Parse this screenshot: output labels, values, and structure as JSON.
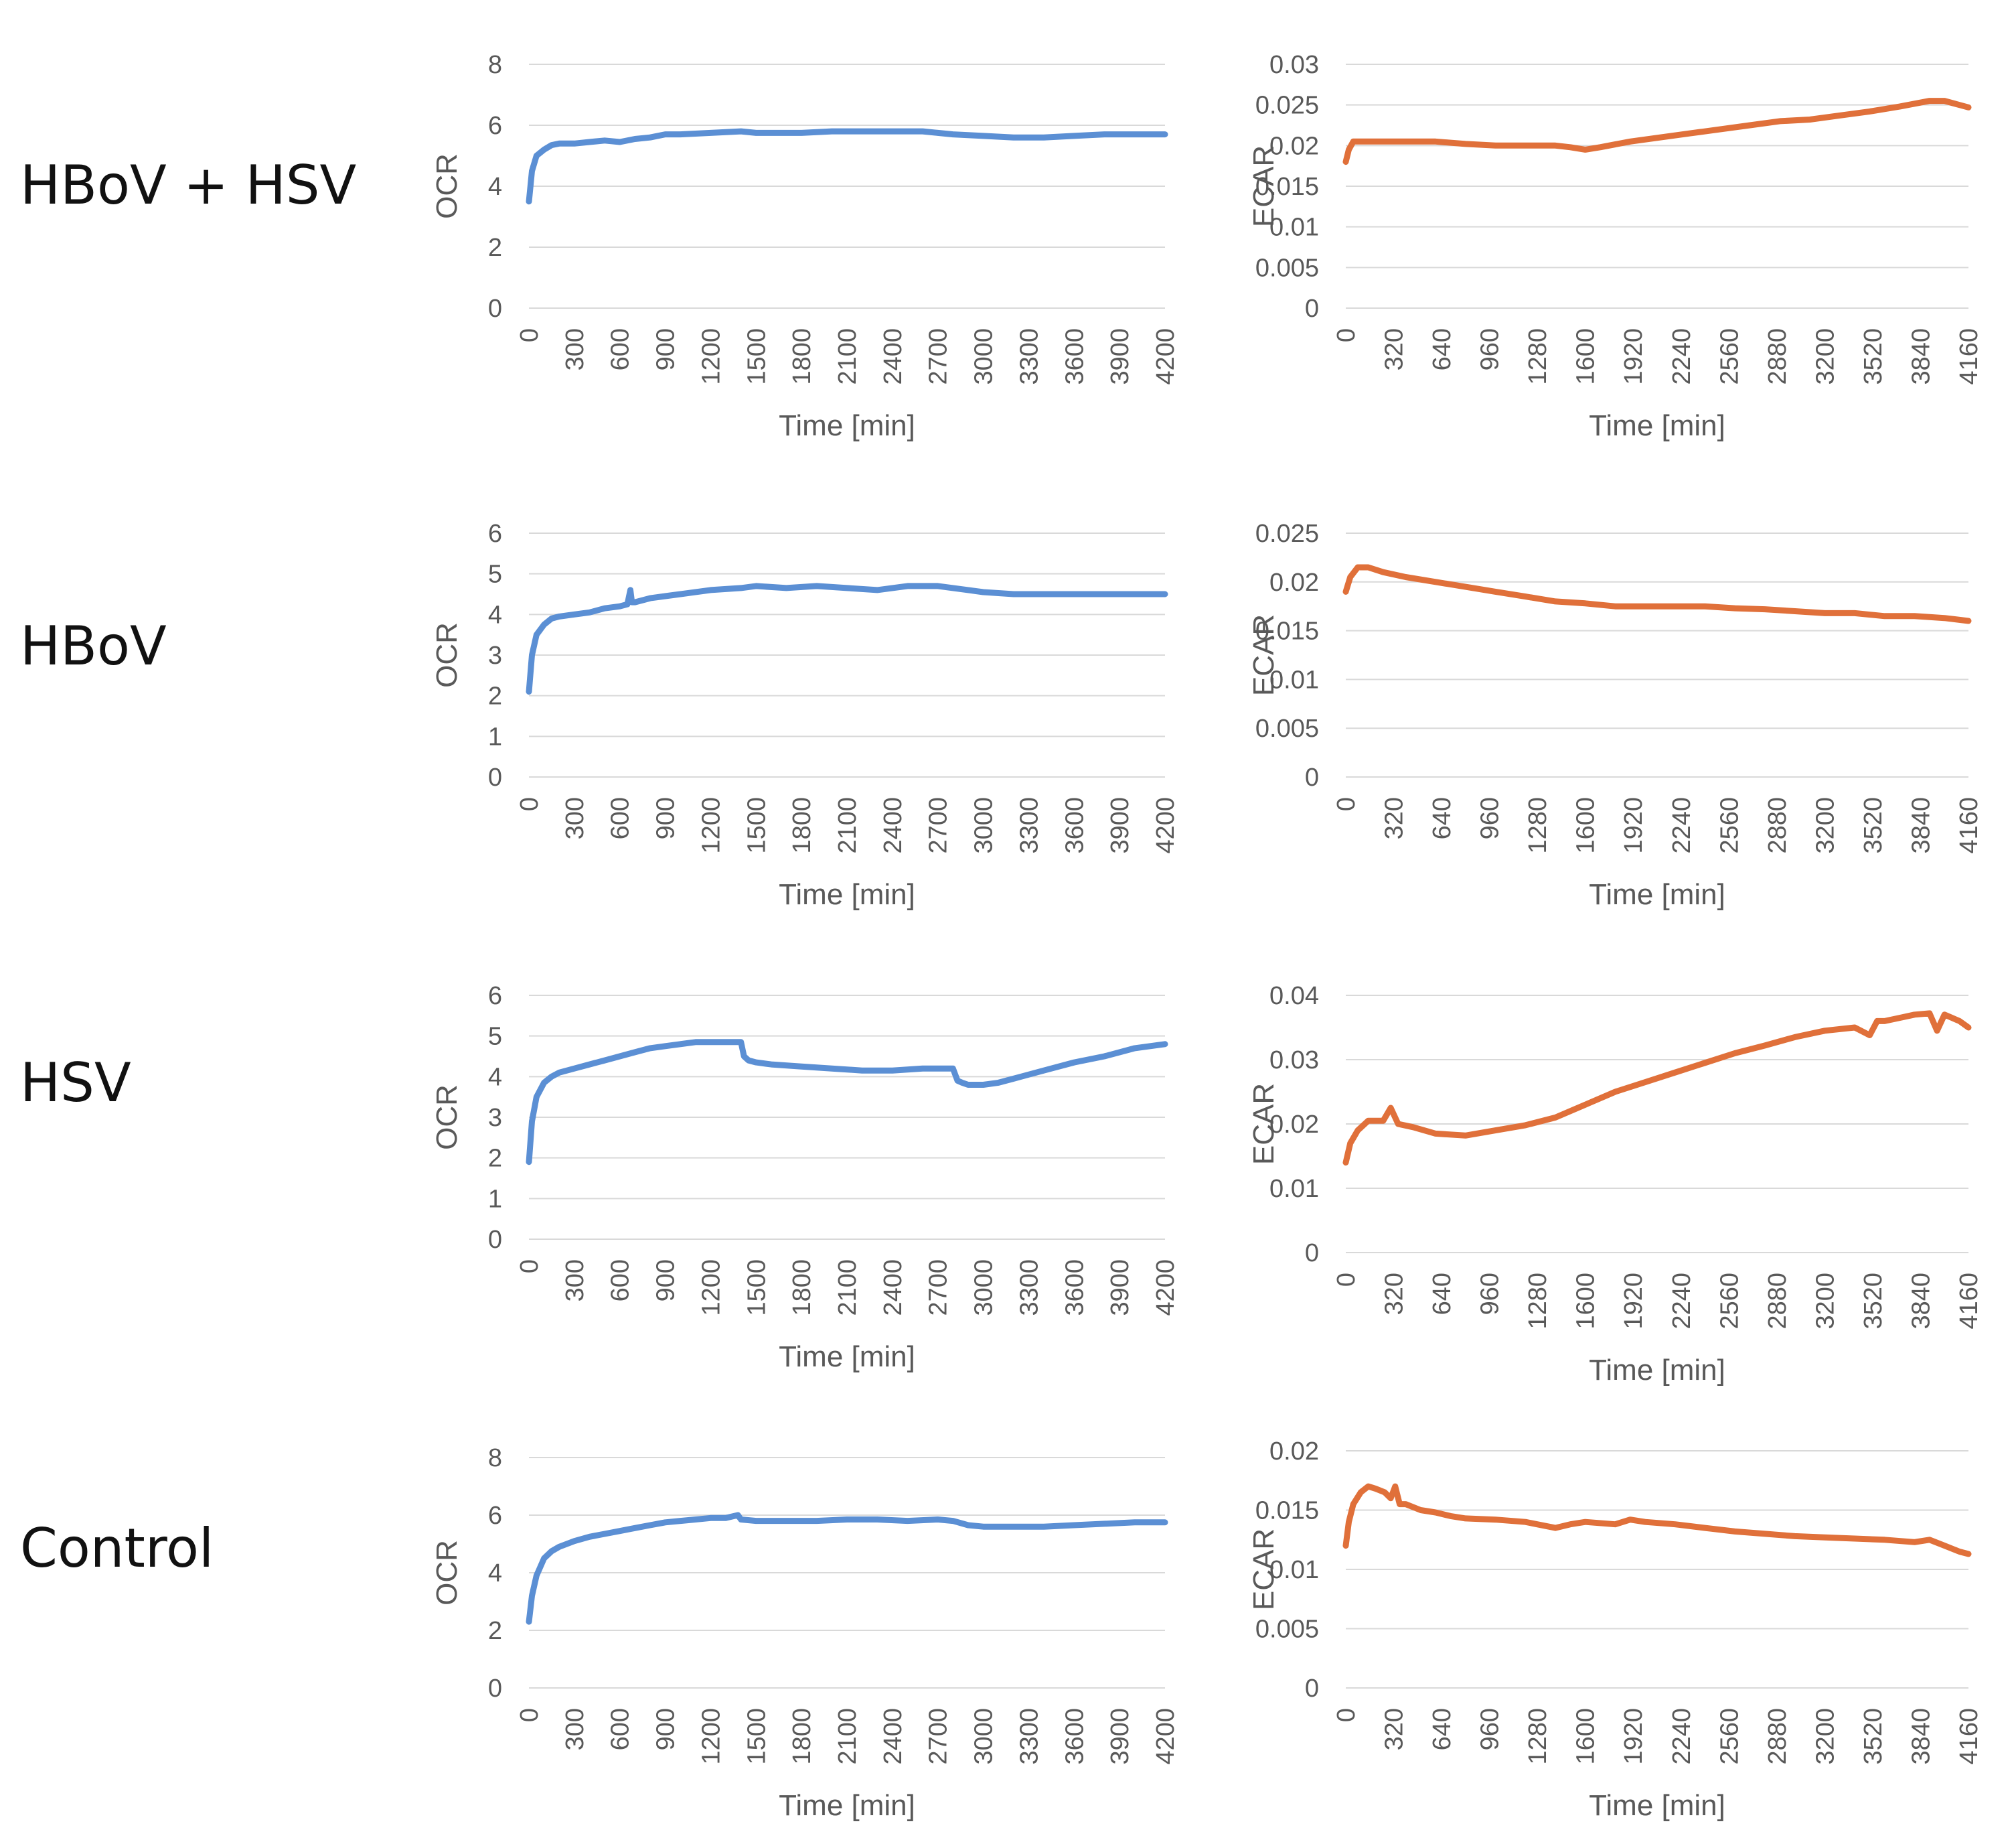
{
  "rows": [
    {
      "label": "HBoV + HSV"
    },
    {
      "label": "HBoV"
    },
    {
      "label": "HSV"
    },
    {
      "label": "Control"
    }
  ],
  "colors": {
    "ocr": "#5B8FD4",
    "ecar": "#E0703A",
    "grid": "#d9d9d9",
    "axis_text": "#595959"
  },
  "chart_data": [
    {
      "id": "ocr-hbov-hsv",
      "type": "line",
      "row_label": "HBoV + HSV",
      "ylabel": "OCR",
      "xlabel": "Time [min]",
      "ylim": [
        0,
        8
      ],
      "yticks": [
        0,
        2,
        4,
        6,
        8
      ],
      "xlim": [
        0,
        4200
      ],
      "xticks": [
        0,
        300,
        600,
        900,
        1200,
        1500,
        1800,
        2100,
        2400,
        2700,
        3000,
        3300,
        3600,
        3900,
        4200
      ],
      "series": [
        {
          "name": "OCR",
          "color": "#5B8FD4",
          "x": [
            0,
            20,
            50,
            100,
            150,
            200,
            300,
            400,
            500,
            600,
            700,
            800,
            900,
            1000,
            1200,
            1400,
            1500,
            1600,
            1800,
            2000,
            2100,
            2200,
            2400,
            2600,
            2700,
            2800,
            3000,
            3200,
            3400,
            3600,
            3800,
            4000,
            4200
          ],
          "y": [
            3.5,
            4.5,
            5.0,
            5.2,
            5.35,
            5.4,
            5.4,
            5.45,
            5.5,
            5.45,
            5.55,
            5.6,
            5.7,
            5.7,
            5.75,
            5.8,
            5.75,
            5.75,
            5.75,
            5.8,
            5.8,
            5.8,
            5.8,
            5.8,
            5.75,
            5.7,
            5.65,
            5.6,
            5.6,
            5.65,
            5.7,
            5.7,
            5.7
          ]
        }
      ]
    },
    {
      "id": "ecar-hbov-hsv",
      "type": "line",
      "row_label": "HBoV + HSV",
      "ylabel": "ECAR",
      "xlabel": "Time [min]",
      "ylim": [
        0,
        0.03
      ],
      "yticks": [
        0,
        0.005,
        0.01,
        0.015,
        0.02,
        0.025,
        0.03
      ],
      "xlim": [
        0,
        4160
      ],
      "xticks": [
        0,
        320,
        640,
        960,
        1280,
        1600,
        1920,
        2240,
        2560,
        2880,
        3200,
        3520,
        3840,
        4160
      ],
      "series": [
        {
          "name": "ECAR",
          "color": "#E0703A",
          "x": [
            0,
            20,
            50,
            100,
            200,
            400,
            600,
            800,
            1000,
            1200,
            1400,
            1500,
            1600,
            1700,
            1900,
            2100,
            2300,
            2500,
            2700,
            2900,
            3100,
            3300,
            3500,
            3700,
            3900,
            4000,
            4100,
            4160
          ],
          "y": [
            0.018,
            0.0195,
            0.0205,
            0.0205,
            0.0205,
            0.0205,
            0.0205,
            0.0202,
            0.02,
            0.02,
            0.02,
            0.0198,
            0.0195,
            0.0198,
            0.0205,
            0.021,
            0.0215,
            0.022,
            0.0225,
            0.023,
            0.0232,
            0.0237,
            0.0242,
            0.0248,
            0.0255,
            0.0255,
            0.025,
            0.0247
          ]
        }
      ]
    },
    {
      "id": "ocr-hbov",
      "type": "line",
      "row_label": "HBoV",
      "ylabel": "OCR",
      "xlabel": "Time [min]",
      "ylim": [
        0,
        6
      ],
      "yticks": [
        0,
        1,
        2,
        3,
        4,
        5,
        6
      ],
      "xlim": [
        0,
        4200
      ],
      "xticks": [
        0,
        300,
        600,
        900,
        1200,
        1500,
        1800,
        2100,
        2400,
        2700,
        3000,
        3300,
        3600,
        3900,
        4200
      ],
      "series": [
        {
          "name": "OCR",
          "color": "#5B8FD4",
          "x": [
            0,
            20,
            50,
            100,
            150,
            200,
            300,
            400,
            500,
            600,
            650,
            670,
            680,
            700,
            800,
            900,
            1000,
            1200,
            1400,
            1500,
            1700,
            1900,
            2100,
            2300,
            2400,
            2500,
            2700,
            2900,
            3000,
            3200,
            3400,
            3600,
            3800,
            4000,
            4200
          ],
          "y": [
            2.1,
            3.0,
            3.5,
            3.75,
            3.9,
            3.95,
            4.0,
            4.05,
            4.15,
            4.2,
            4.25,
            4.6,
            4.3,
            4.3,
            4.4,
            4.45,
            4.5,
            4.6,
            4.65,
            4.7,
            4.65,
            4.7,
            4.65,
            4.6,
            4.65,
            4.7,
            4.7,
            4.6,
            4.55,
            4.5,
            4.5,
            4.5,
            4.5,
            4.5,
            4.5
          ]
        }
      ]
    },
    {
      "id": "ecar-hbov",
      "type": "line",
      "row_label": "HBoV",
      "ylabel": "ECAR",
      "xlabel": "Time [min]",
      "ylim": [
        0,
        0.025
      ],
      "yticks": [
        0,
        0.005,
        0.01,
        0.015,
        0.02,
        0.025
      ],
      "xlim": [
        0,
        4160
      ],
      "xticks": [
        0,
        320,
        640,
        960,
        1280,
        1600,
        1920,
        2240,
        2560,
        2880,
        3200,
        3520,
        3840,
        4160
      ],
      "series": [
        {
          "name": "ECAR",
          "color": "#E0703A",
          "x": [
            0,
            30,
            80,
            150,
            250,
            400,
            600,
            800,
            1000,
            1200,
            1400,
            1600,
            1800,
            2000,
            2200,
            2400,
            2600,
            2800,
            3000,
            3200,
            3400,
            3600,
            3800,
            4000,
            4160
          ],
          "y": [
            0.019,
            0.0205,
            0.0215,
            0.0215,
            0.021,
            0.0205,
            0.02,
            0.0195,
            0.019,
            0.0185,
            0.018,
            0.0178,
            0.0175,
            0.0175,
            0.0175,
            0.0175,
            0.0173,
            0.0172,
            0.017,
            0.0168,
            0.0168,
            0.0165,
            0.0165,
            0.0163,
            0.016
          ]
        }
      ]
    },
    {
      "id": "ocr-hsv",
      "type": "line",
      "row_label": "HSV",
      "ylabel": "OCR",
      "xlabel": "Time [min]",
      "ylim": [
        0,
        6
      ],
      "yticks": [
        0,
        1,
        2,
        3,
        4,
        5,
        6
      ],
      "xlim": [
        0,
        4200
      ],
      "xticks": [
        0,
        300,
        600,
        900,
        1200,
        1500,
        1800,
        2100,
        2400,
        2700,
        3000,
        3300,
        3600,
        3900,
        4200
      ],
      "series": [
        {
          "name": "OCR",
          "color": "#5B8FD4",
          "x": [
            0,
            20,
            50,
            100,
            150,
            200,
            300,
            400,
            500,
            600,
            700,
            800,
            900,
            1000,
            1100,
            1200,
            1300,
            1400,
            1420,
            1450,
            1500,
            1600,
            1800,
            2000,
            2200,
            2400,
            2600,
            2800,
            2830,
            2860,
            2900,
            3000,
            3100,
            3200,
            3400,
            3600,
            3800,
            4000,
            4200
          ],
          "y": [
            1.9,
            2.9,
            3.5,
            3.85,
            4.0,
            4.1,
            4.2,
            4.3,
            4.4,
            4.5,
            4.6,
            4.7,
            4.75,
            4.8,
            4.85,
            4.85,
            4.85,
            4.85,
            4.5,
            4.4,
            4.35,
            4.3,
            4.25,
            4.2,
            4.15,
            4.15,
            4.2,
            4.2,
            3.9,
            3.85,
            3.8,
            3.8,
            3.85,
            3.95,
            4.15,
            4.35,
            4.5,
            4.7,
            4.8
          ]
        }
      ]
    },
    {
      "id": "ecar-hsv",
      "type": "line",
      "row_label": "HSV",
      "ylabel": "ECAR",
      "xlabel": "Time [min]",
      "ylim": [
        0,
        0.04
      ],
      "yticks": [
        0,
        0.01,
        0.02,
        0.03,
        0.04
      ],
      "xlim": [
        0,
        4160
      ],
      "xticks": [
        0,
        320,
        640,
        960,
        1280,
        1600,
        1920,
        2240,
        2560,
        2880,
        3200,
        3520,
        3840,
        4160
      ],
      "series": [
        {
          "name": "ECAR",
          "color": "#E0703A",
          "x": [
            0,
            30,
            80,
            150,
            250,
            300,
            350,
            450,
            600,
            800,
            1000,
            1200,
            1400,
            1600,
            1800,
            2000,
            2200,
            2400,
            2600,
            2800,
            3000,
            3200,
            3400,
            3500,
            3550,
            3600,
            3700,
            3800,
            3900,
            3950,
            4000,
            4100,
            4160
          ],
          "y": [
            0.014,
            0.017,
            0.019,
            0.0205,
            0.0205,
            0.0225,
            0.02,
            0.0195,
            0.0185,
            0.0182,
            0.019,
            0.0198,
            0.021,
            0.023,
            0.025,
            0.0265,
            0.028,
            0.0295,
            0.031,
            0.0322,
            0.0335,
            0.0345,
            0.035,
            0.0338,
            0.036,
            0.036,
            0.0365,
            0.037,
            0.0372,
            0.0345,
            0.037,
            0.036,
            0.035
          ]
        }
      ]
    },
    {
      "id": "ocr-control",
      "type": "line",
      "row_label": "Control",
      "ylabel": "OCR",
      "xlabel": "Time [min]",
      "ylim": [
        0,
        8
      ],
      "yticks": [
        0,
        2,
        4,
        6,
        8
      ],
      "xlim": [
        0,
        4200
      ],
      "xticks": [
        0,
        300,
        600,
        900,
        1200,
        1500,
        1800,
        2100,
        2400,
        2700,
        3000,
        3300,
        3600,
        3900,
        4200
      ],
      "series": [
        {
          "name": "OCR",
          "color": "#5B8FD4",
          "x": [
            0,
            20,
            50,
            100,
            150,
            200,
            300,
            400,
            500,
            600,
            700,
            800,
            900,
            1000,
            1100,
            1200,
            1300,
            1380,
            1400,
            1500,
            1700,
            1900,
            2100,
            2300,
            2500,
            2700,
            2800,
            2900,
            3000,
            3200,
            3400,
            3600,
            3800,
            4000,
            4200
          ],
          "y": [
            2.3,
            3.2,
            3.9,
            4.5,
            4.75,
            4.9,
            5.1,
            5.25,
            5.35,
            5.45,
            5.55,
            5.65,
            5.75,
            5.8,
            5.85,
            5.9,
            5.9,
            6.0,
            5.85,
            5.8,
            5.8,
            5.8,
            5.85,
            5.85,
            5.8,
            5.85,
            5.8,
            5.65,
            5.6,
            5.6,
            5.6,
            5.65,
            5.7,
            5.75,
            5.75
          ]
        }
      ]
    },
    {
      "id": "ecar-control",
      "type": "line",
      "row_label": "Control",
      "ylabel": "ECAR",
      "xlabel": "Time [min]",
      "ylim": [
        0,
        0.02
      ],
      "yticks": [
        0,
        0.005,
        0.01,
        0.015,
        0.02
      ],
      "xlim": [
        0,
        4160
      ],
      "xticks": [
        0,
        320,
        640,
        960,
        1280,
        1600,
        1920,
        2240,
        2560,
        2880,
        3200,
        3520,
        3840,
        4160
      ],
      "series": [
        {
          "name": "ECAR",
          "color": "#E0703A",
          "x": [
            0,
            20,
            50,
            100,
            150,
            200,
            260,
            300,
            330,
            360,
            400,
            500,
            600,
            700,
            800,
            1000,
            1200,
            1400,
            1500,
            1600,
            1800,
            1900,
            2000,
            2200,
            2400,
            2600,
            2800,
            3000,
            3200,
            3400,
            3600,
            3800,
            3900,
            4000,
            4100,
            4160
          ],
          "y": [
            0.012,
            0.014,
            0.0155,
            0.0165,
            0.017,
            0.0168,
            0.0165,
            0.016,
            0.017,
            0.0155,
            0.0155,
            0.015,
            0.0148,
            0.0145,
            0.0143,
            0.0142,
            0.014,
            0.0135,
            0.0138,
            0.014,
            0.0138,
            0.0142,
            0.014,
            0.0138,
            0.0135,
            0.0132,
            0.013,
            0.0128,
            0.0127,
            0.0126,
            0.0125,
            0.0123,
            0.0125,
            0.012,
            0.0115,
            0.0113
          ]
        }
      ]
    }
  ]
}
